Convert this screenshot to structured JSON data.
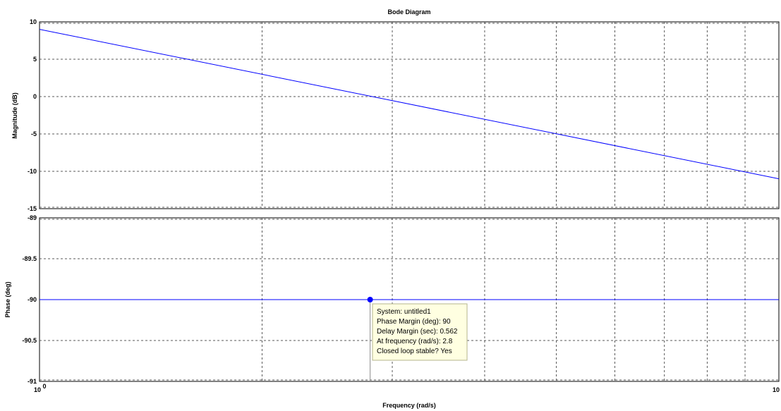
{
  "chart_data": {
    "type": "line",
    "title": "Bode Diagram",
    "xlabel": "Frequency  (rad/s)",
    "xscale": "log",
    "xlim": [
      1,
      10
    ],
    "x_ticks": [
      {
        "value": 1,
        "base": "10",
        "exp": "0"
      },
      {
        "value": 10,
        "label": "10"
      }
    ],
    "grid": true,
    "panels": [
      {
        "name": "magnitude",
        "ylabel": "Magnitude (dB)",
        "ylim": [
          -15,
          10
        ],
        "yticks": [
          10,
          5,
          0,
          -5,
          -10,
          -15
        ],
        "series": [
          {
            "x": [
              1,
              10
            ],
            "y": [
              9,
              -11
            ]
          }
        ]
      },
      {
        "name": "phase",
        "ylabel": "Phase (deg)",
        "ylim": [
          -91,
          -89
        ],
        "yticks": [
          -89,
          -89.5,
          -90,
          -90.5,
          -91
        ],
        "series": [
          {
            "x": [
              1,
              10
            ],
            "y": [
              -90,
              -90
            ]
          }
        ],
        "marker": {
          "x": 2.8,
          "y": -90
        }
      }
    ],
    "annotation": {
      "lines": [
        "System: untitled1",
        "Phase Margin (deg): 90",
        "Delay Margin (sec): 0.562",
        "At frequency (rad/s): 2.8",
        "Closed loop stable? Yes"
      ]
    },
    "colors": {
      "series": "#0000ff",
      "grid": "#5a5a5a",
      "tooltip_bg": "#ffffe1"
    }
  }
}
